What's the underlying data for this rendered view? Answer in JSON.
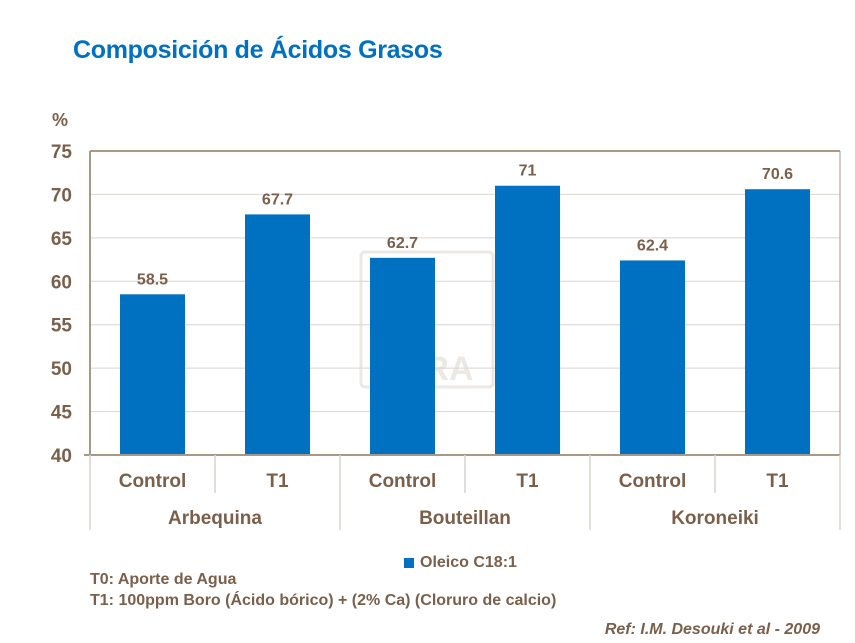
{
  "chart_data": {
    "type": "bar",
    "title": "Composición de Ácidos Grasos",
    "ylabel": "%",
    "ylim": [
      40,
      75
    ],
    "yticks": [
      40,
      45,
      50,
      55,
      60,
      65,
      70,
      75
    ],
    "grid": true,
    "groups": [
      {
        "label": "Arbequina",
        "categories": [
          "Control",
          "T1"
        ]
      },
      {
        "label": "Bouteillan",
        "categories": [
          "Control",
          "T1"
        ]
      },
      {
        "label": "Koroneiki",
        "categories": [
          "Control",
          "T1"
        ]
      }
    ],
    "series": [
      {
        "name": "Oleico C18:1",
        "values": [
          58.5,
          67.7,
          62.7,
          71,
          62.4,
          70.6
        ],
        "labels": [
          "58.5",
          "67.7",
          "62.7",
          "71",
          "62.4",
          "70.6"
        ],
        "color": "#0070c0"
      }
    ],
    "legend_position": "bottom",
    "watermark": "YARA"
  },
  "notes": {
    "t0": "T0: Aporte de Agua",
    "t1": "T1: 100ppm Boro (Ácido bórico) + (2% Ca) (Cloruro de calcio)",
    "ref": "Ref: I.M. Desouki et al - 2009"
  },
  "colors": {
    "title": "#0070c0",
    "text": "#7a5f4a",
    "axis": "#a89888",
    "grid": "#d9d4cf"
  }
}
